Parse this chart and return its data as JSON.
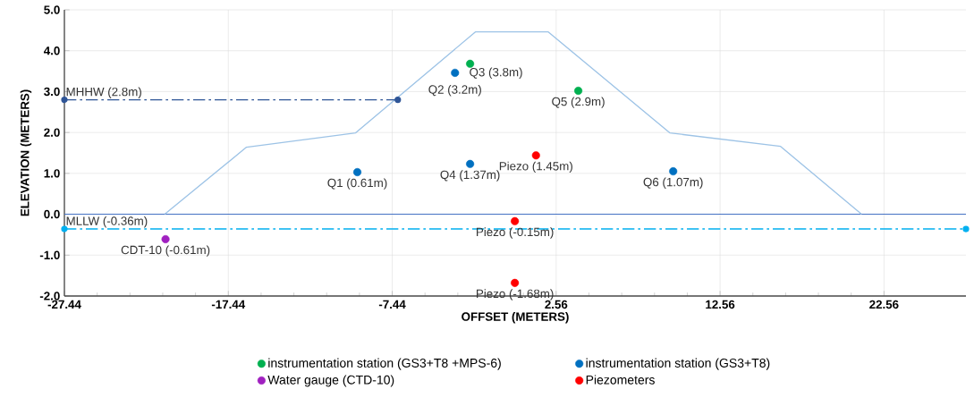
{
  "chart_data": {
    "type": "scatter",
    "xlabel": "OFFSET (METERS)",
    "ylabel": "ELEVATION (METERS)",
    "xlim": [
      -27.44,
      27.56
    ],
    "ylim": [
      -2,
      5
    ],
    "xticks": [
      -27.44,
      -17.44,
      -7.44,
      2.56,
      12.56,
      22.56
    ],
    "yticks": [
      {
        "value": -2,
        "label": "-2.0"
      },
      {
        "value": -1,
        "label": "-1.0"
      },
      {
        "value": 0,
        "label": "0.0"
      },
      {
        "value": 1,
        "label": "1.0"
      },
      {
        "value": 2,
        "label": "2.0"
      },
      {
        "value": 3,
        "label": "3.0"
      },
      {
        "value": 4,
        "label": "4.0"
      },
      {
        "value": 5,
        "label": "5.0"
      }
    ],
    "grid": true,
    "legend": "bottom",
    "ref_lines": [
      {
        "axis": "y",
        "value": 0,
        "color": "#4472c4"
      }
    ],
    "series": [
      {
        "type": "line",
        "color": "#9dc3e6",
        "marker": "none",
        "line_style": "solid",
        "x": [
          -21.32,
          -16.33,
          -9.67,
          -2.37,
          2.08,
          9.49,
          16.25,
          21.19
        ],
        "values": [
          0,
          1.64,
          1.99,
          4.46,
          4.46,
          1.99,
          1.66,
          0
        ]
      },
      {
        "type": "line",
        "name": "MHHW (2.8m)",
        "color": "#2f5597",
        "marker": "circle",
        "line_style": "dashdot",
        "x": [
          -27.44,
          -7.1
        ],
        "values": [
          2.8,
          2.8
        ]
      },
      {
        "type": "line",
        "name": "MLLW (-0.36m)",
        "color": "#00b0f0",
        "marker": "circle",
        "line_style": "dashdot",
        "x": [
          -27.44,
          27.56
        ],
        "values": [
          -0.36,
          -0.36
        ]
      },
      {
        "name": "instrumentation station (GS3+T8 +MPS-6)",
        "color": "#00b050",
        "marker": "circle",
        "x": [
          -2.69,
          3.91
        ],
        "values": [
          3.68,
          3.02
        ]
      },
      {
        "name": "instrumentation station (GS3+T8)",
        "color": "#0070c0",
        "marker": "circle",
        "x": [
          -9.57,
          -3.61,
          -2.69,
          9.7
        ],
        "values": [
          1.03,
          3.46,
          1.23,
          1.05
        ]
      },
      {
        "name": "Water gauge (CTD-10)",
        "color": "#a020c0",
        "marker": "circle",
        "x": [
          -21.27
        ],
        "values": [
          -0.61
        ]
      },
      {
        "name": "Piezometers",
        "color": "#ff0000",
        "marker": "circle",
        "x": [
          1.33,
          0.04,
          0.04
        ],
        "values": [
          1.44,
          -0.17,
          -1.68
        ]
      }
    ],
    "annotations": [
      {
        "text": "Q1 (0.61m)",
        "x": -9.57,
        "y": 1.03
      },
      {
        "text": "Q2 (3.2m)",
        "x": -3.61,
        "y": 3.46
      },
      {
        "text": "Q3 (3.8m)",
        "x": -2.69,
        "y": 3.68
      },
      {
        "text": "Q4 (1.37m)",
        "x": -2.69,
        "y": 1.23
      },
      {
        "text": "Q5 (2.9m)",
        "x": 3.91,
        "y": 3.02
      },
      {
        "text": "Q6 (1.07m)",
        "x": 9.7,
        "y": 1.05
      },
      {
        "text": "Piezo (1.45m)",
        "x": 1.33,
        "y": 1.44
      },
      {
        "text": "Piezo (-0.15m)",
        "x": 0.04,
        "y": -0.17
      },
      {
        "text": "Piezo (-1.68m)",
        "x": 0.04,
        "y": -1.68
      },
      {
        "text": "CDT-10 (-0.61m)",
        "x": -21.27,
        "y": -0.61
      }
    ]
  }
}
